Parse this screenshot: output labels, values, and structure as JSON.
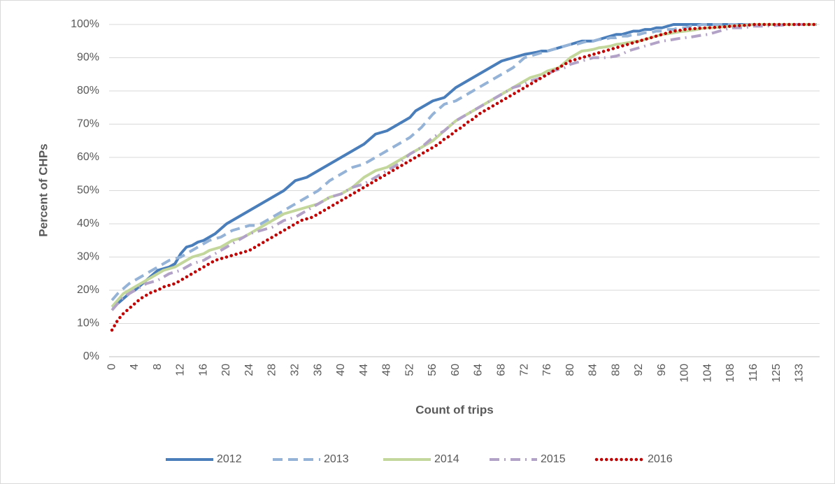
{
  "chart_data": {
    "type": "line",
    "x_label": "Count of trips",
    "y_label": "Percent of CHPs",
    "categories": [
      "0",
      null,
      null,
      null,
      "4",
      null,
      null,
      null,
      "8",
      null,
      null,
      null,
      "12",
      null,
      null,
      null,
      "16",
      null,
      null,
      null,
      "20",
      null,
      null,
      null,
      "24",
      null,
      null,
      null,
      "28",
      null,
      null,
      null,
      "32",
      null,
      null,
      null,
      "36",
      null,
      null,
      null,
      "40",
      null,
      null,
      null,
      "44",
      null,
      null,
      null,
      "48",
      null,
      null,
      null,
      "52",
      null,
      null,
      null,
      "56",
      null,
      null,
      null,
      "60",
      null,
      null,
      null,
      "64",
      null,
      null,
      null,
      "68",
      null,
      null,
      null,
      "72",
      null,
      null,
      null,
      "76",
      null,
      null,
      null,
      "80",
      null,
      null,
      null,
      "84",
      null,
      null,
      null,
      "88",
      null,
      null,
      null,
      "92",
      null,
      null,
      null,
      "96",
      null,
      null,
      null,
      "100",
      null,
      null,
      null,
      "104",
      null,
      null,
      null,
      "108",
      null,
      null,
      null,
      "116",
      null,
      null,
      null,
      "125",
      null,
      null,
      null,
      "133",
      null,
      null,
      null
    ],
    "ylim": [
      0,
      100
    ],
    "yticks": [
      {
        "value": 0,
        "label": "0%"
      },
      {
        "value": 10,
        "label": "10%"
      },
      {
        "value": 20,
        "label": "20%"
      },
      {
        "value": 30,
        "label": "30%"
      },
      {
        "value": 40,
        "label": "40%"
      },
      {
        "value": 50,
        "label": "50%"
      },
      {
        "value": 60,
        "label": "60%"
      },
      {
        "value": 70,
        "label": "70%"
      },
      {
        "value": 80,
        "label": "80%"
      },
      {
        "value": 90,
        "label": "90%"
      },
      {
        "value": 100,
        "label": "100%"
      }
    ],
    "grid": true,
    "legend": "bottom",
    "series": [
      {
        "name": "2012",
        "color": "#4a7ebb",
        "dash": "solid",
        "values": [
          15,
          16,
          17.5,
          19,
          20,
          21.5,
          23,
          24.5,
          26,
          26.5,
          27,
          28,
          31,
          33,
          33.5,
          34.5,
          35,
          36,
          37,
          38.5,
          40,
          41,
          42,
          43,
          44,
          45,
          46,
          47,
          48,
          49,
          50,
          51.5,
          53,
          53.5,
          54,
          55,
          56,
          57,
          58,
          59,
          60,
          61,
          62,
          63,
          64,
          65.5,
          67,
          67.5,
          68,
          69,
          70,
          71,
          72,
          74,
          75,
          76,
          77,
          77.5,
          78,
          79.5,
          81,
          82,
          83,
          84,
          85,
          86,
          87,
          88,
          89,
          89.5,
          90,
          90.5,
          91,
          91.3,
          91.6,
          92,
          92,
          92.5,
          93,
          93.5,
          94,
          94.5,
          95,
          95,
          95,
          95.5,
          96,
          96.5,
          97,
          97,
          97.5,
          98,
          98,
          98.5,
          98.5,
          99,
          99,
          99.5,
          100,
          100,
          100,
          100,
          100,
          100,
          100,
          100,
          100,
          100,
          100,
          100,
          100,
          100,
          100,
          100,
          100,
          100,
          100,
          100,
          100,
          100,
          100,
          100,
          100,
          100
        ]
      },
      {
        "name": "2013",
        "color": "#95b3d7",
        "dash": "dashed",
        "values": [
          17,
          19,
          20.5,
          22,
          23,
          24,
          25,
          26,
          27,
          28,
          29,
          29.5,
          30,
          31,
          32,
          33,
          34,
          35,
          35.5,
          36,
          37,
          38,
          38.5,
          39,
          39.5,
          39.5,
          40,
          41,
          42,
          43,
          44,
          45,
          46,
          47,
          48,
          49,
          50,
          51.5,
          53,
          54,
          55,
          56,
          57,
          57.5,
          58,
          59,
          60,
          61,
          62,
          63,
          64,
          65,
          66,
          67.5,
          69,
          71,
          73,
          74.5,
          76,
          76.5,
          77,
          78,
          79,
          80,
          81,
          82,
          83,
          84,
          85,
          86,
          87,
          88.5,
          90,
          90.5,
          91,
          91.5,
          92,
          92.5,
          93,
          93.5,
          94,
          94,
          94.5,
          95,
          95,
          95.5,
          95.5,
          96,
          96,
          96.5,
          96.5,
          97,
          97,
          97.5,
          97.5,
          98,
          98,
          98.5,
          98.5,
          99,
          99,
          99.5,
          99.5,
          100,
          100,
          100,
          100,
          100,
          100,
          100,
          100,
          100,
          100,
          100,
          100,
          100,
          100,
          100,
          100,
          100,
          100,
          100,
          100,
          100
        ]
      },
      {
        "name": "2014",
        "color": "#c3d69b",
        "dash": "solid",
        "values": [
          15,
          17,
          19,
          20,
          21,
          22,
          23,
          24,
          25,
          26,
          26.5,
          27,
          28,
          29,
          30,
          30.5,
          31,
          32,
          32.5,
          33,
          34,
          35,
          35.5,
          36,
          37,
          38,
          39,
          40,
          41,
          42,
          43,
          43.5,
          44,
          44.5,
          45,
          45.5,
          46,
          47,
          48,
          48.5,
          49,
          50,
          51,
          52.5,
          54,
          55,
          56,
          56.5,
          57,
          58,
          59,
          60,
          61,
          62,
          63,
          64,
          65,
          66.5,
          68,
          69.5,
          71,
          72,
          73,
          74,
          75,
          76,
          77,
          78,
          79,
          80,
          81,
          82,
          83,
          84,
          84.5,
          85,
          86,
          86.5,
          87,
          88.5,
          90,
          91,
          92,
          92.2,
          92.5,
          93,
          93.2,
          93.5,
          94,
          94.2,
          94.5,
          94.8,
          95,
          95.5,
          96,
          96.5,
          97,
          97.2,
          97.5,
          97.8,
          98,
          98.2,
          98.5,
          98.8,
          99,
          99,
          99.2,
          99.3,
          99.5,
          99.6,
          99.7,
          99.8,
          100,
          100,
          100,
          100,
          100,
          100,
          100,
          100,
          100,
          100,
          100,
          100
        ]
      },
      {
        "name": "2015",
        "color": "#b3a2c7",
        "dash": "dash-dot",
        "values": [
          14,
          16,
          18,
          19,
          20,
          21,
          22,
          22.5,
          23,
          24,
          25,
          25.5,
          26,
          27,
          28,
          28.5,
          29,
          30,
          31,
          32,
          33,
          34,
          35,
          36,
          37,
          37.5,
          38,
          38.5,
          39,
          40,
          41,
          41.5,
          42,
          43,
          44,
          45,
          46,
          47,
          48,
          48.5,
          49,
          50,
          51,
          51.5,
          52,
          53,
          54,
          55,
          56,
          57,
          58,
          59.5,
          61,
          62,
          63,
          64.5,
          66,
          67,
          68,
          69.5,
          71,
          72,
          73,
          74,
          75,
          76,
          77,
          78,
          79,
          80,
          81,
          81.5,
          82,
          83,
          83.5,
          84,
          85,
          86,
          86.5,
          87,
          88,
          88.5,
          89,
          89.5,
          90,
          90,
          90,
          90.2,
          90.5,
          91,
          92,
          92.5,
          93,
          93.5,
          94,
          94.5,
          95,
          95.2,
          95.5,
          95.8,
          96,
          96.2,
          96.5,
          96.8,
          97,
          97.5,
          98,
          98.5,
          99,
          99,
          99,
          99.2,
          99.5,
          99.5,
          99.5,
          99.6,
          99.7,
          99.8,
          99.9,
          100,
          100,
          100,
          100,
          100
        ]
      },
      {
        "name": "2016",
        "color": "#c00000",
        "dash": "dotted",
        "values": [
          8,
          11,
          13,
          14.5,
          16,
          17.5,
          18.5,
          19.5,
          20,
          21,
          21.5,
          22,
          23,
          24,
          25,
          26,
          27,
          28,
          29,
          29.5,
          30,
          30.5,
          31,
          31.5,
          32,
          33,
          34,
          35,
          36,
          37,
          38,
          39,
          40,
          41,
          41.5,
          42,
          43,
          44,
          45,
          46,
          47,
          48,
          49,
          50,
          51,
          52,
          53,
          54,
          55,
          56,
          57,
          58,
          59,
          60,
          61,
          62,
          63,
          64,
          65.5,
          66.5,
          68,
          69,
          70.5,
          71.5,
          73,
          74,
          75,
          76,
          77,
          78,
          79,
          80,
          81,
          82,
          83,
          84,
          85,
          86,
          87,
          88,
          89,
          89.5,
          90,
          90.5,
          91,
          91.5,
          92,
          92.5,
          93,
          93.5,
          94,
          94.5,
          95,
          95.5,
          96,
          96.5,
          97,
          97.5,
          98,
          98.2,
          98.5,
          98.7,
          98.8,
          98.9,
          99,
          99.1,
          99.2,
          99.3,
          99.5,
          99.6,
          99.7,
          99.8,
          100,
          100,
          100,
          100,
          100,
          100,
          100,
          100,
          100,
          100,
          100,
          100
        ]
      }
    ]
  }
}
